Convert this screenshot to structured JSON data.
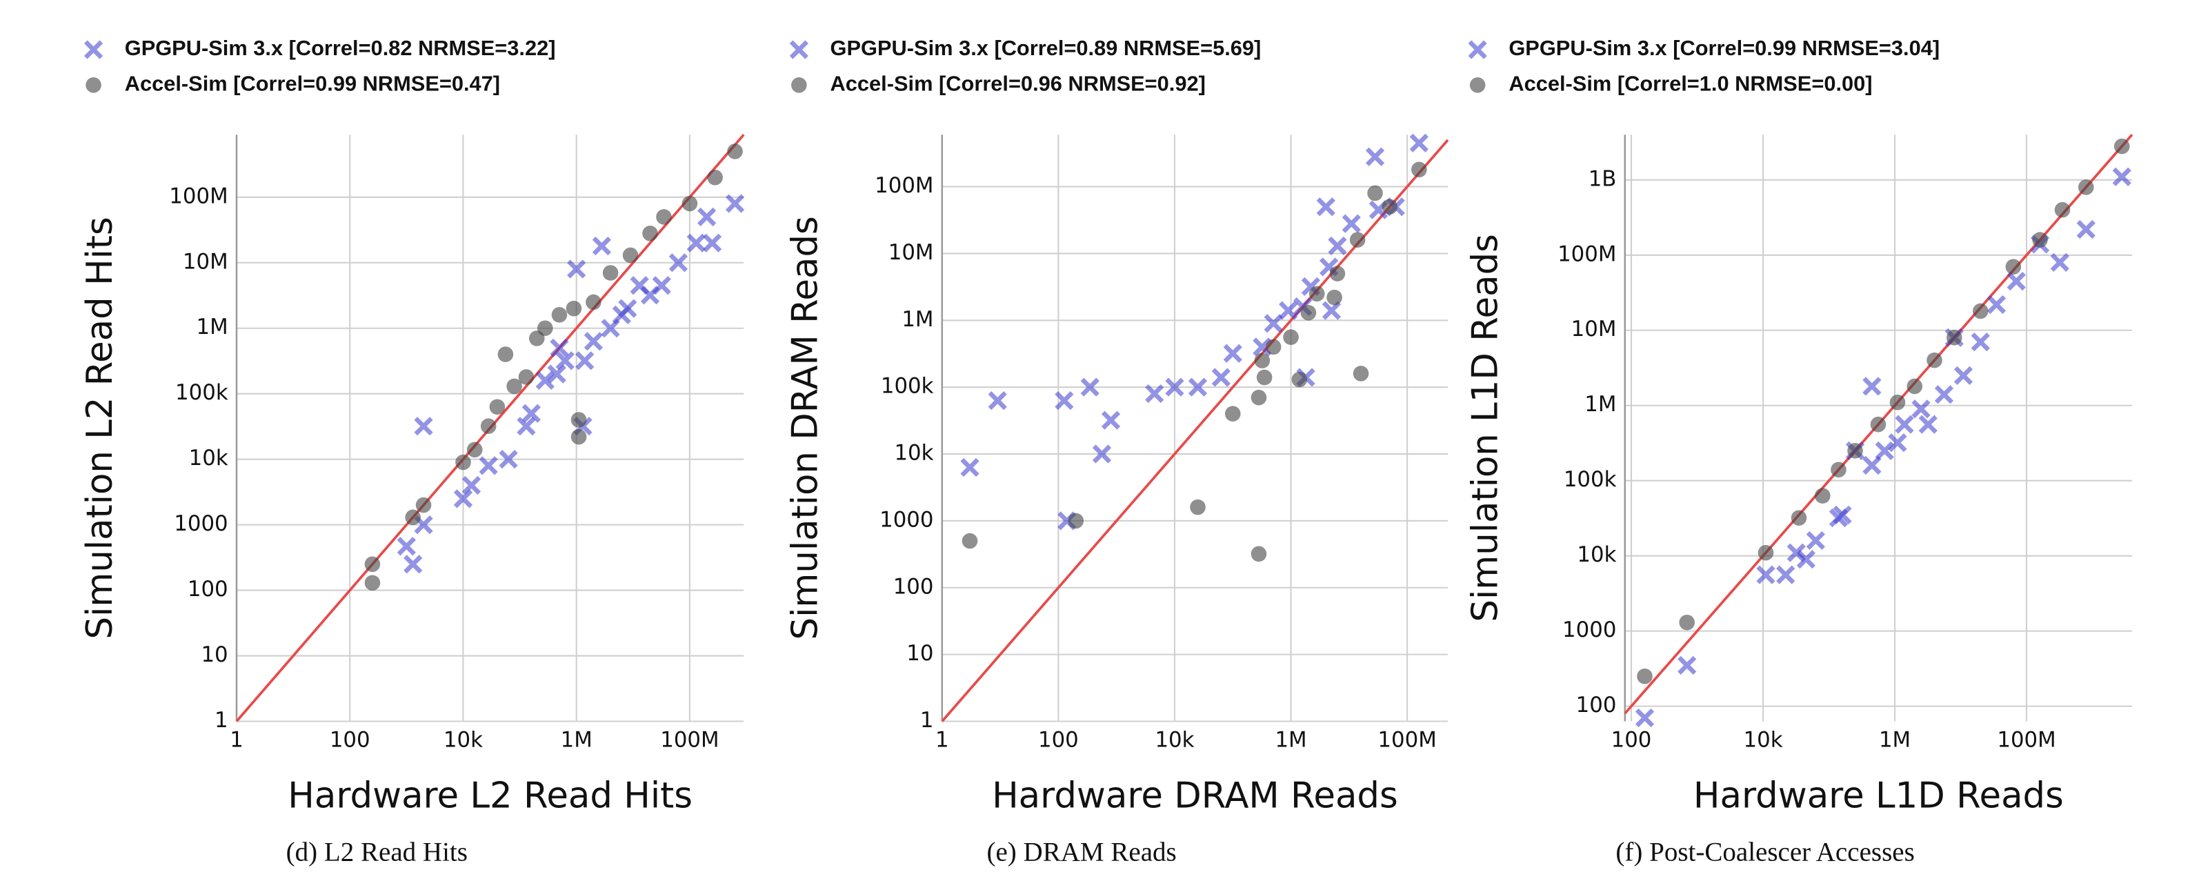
{
  "chart_data": [
    {
      "type": "scatter",
      "caption": "(d) L2 Read Hits",
      "x_label": "Hardware L2 Read Hits",
      "y_label": "Simulation L2 Read Hits",
      "log_x": true,
      "log_y": true,
      "grid": true,
      "diagonal_color": "#e84a4a",
      "xlim": [
        1,
        900000000.0
      ],
      "ylim": [
        1,
        900000000.0
      ],
      "xticks": [
        1,
        100,
        {
          "value": 10000.0,
          "label": "10k"
        },
        {
          "value": 1000000.0,
          "label": "1M"
        },
        {
          "value": 100000000.0,
          "label": "100M"
        }
      ],
      "yticks": [
        1,
        10,
        100,
        1000,
        {
          "value": 10000.0,
          "label": "10k"
        },
        {
          "value": 100000.0,
          "label": "100k"
        },
        {
          "value": 1000000.0,
          "label": "1M"
        },
        {
          "value": 10000000.0,
          "label": "10M"
        },
        {
          "value": 100000000.0,
          "label": "100M"
        }
      ],
      "series": [
        {
          "name": "GPGPU-Sim 3.x [Correl=0.82 NRMSE=3.22]",
          "color": "#3b3bd0",
          "marker": "x",
          "x": [
            2000,
            1000,
            1300,
            2000,
            10000,
            14000,
            28000,
            63000,
            130000,
            160000,
            280000,
            450000,
            630000,
            1000000,
            1300000,
            2000000,
            2800000,
            4000000,
            6300000,
            8000000,
            20000000,
            32000000,
            63000000,
            130000000,
            200000000,
            250000000,
            630000000,
            1400000,
            500000,
            13000000
          ],
          "values": [
            32000,
            470,
            250,
            1000,
            2500,
            4000,
            8000,
            10000,
            32000,
            50000,
            160000,
            200000,
            320000,
            8000000,
            32000,
            630000,
            18000000,
            1000000,
            1600000,
            2000000,
            3200000,
            4500000,
            10000000,
            20000000,
            50000000,
            20000000,
            80000000,
            320000,
            500000,
            4500000
          ]
        },
        {
          "name": "Accel-Sim [Correl=0.99 NRMSE=0.47]",
          "color": "#444444",
          "marker": "o",
          "x": [
            250,
            250,
            1300,
            2000,
            10000,
            16000,
            28000,
            40000,
            56000,
            80000,
            130000,
            200000,
            280000,
            500000,
            900000,
            1100000,
            1100000,
            2000000,
            4000000,
            9000000,
            20000000,
            35000000,
            100000000,
            280000000,
            630000000
          ],
          "values": [
            250,
            130,
            1300,
            2000,
            9000,
            14000,
            32000,
            63000,
            400000,
            130000,
            180000,
            700000,
            1000000,
            1600000,
            2000000,
            40000,
            22000,
            2500000,
            7000000,
            13000000,
            28000000,
            50000000,
            80000000,
            200000000,
            500000000
          ]
        }
      ]
    },
    {
      "type": "scatter",
      "caption": "(e) DRAM Reads",
      "x_label": "Hardware DRAM Reads",
      "y_label": "Simulation DRAM Reads",
      "log_x": true,
      "log_y": true,
      "grid": true,
      "diagonal_color": "#e84a4a",
      "xlim": [
        1,
        500000000.0
      ],
      "ylim": [
        1,
        600000000.0
      ],
      "xticks": [
        1,
        100,
        {
          "value": 10000.0,
          "label": "10k"
        },
        {
          "value": 1000000.0,
          "label": "1M"
        },
        {
          "value": 100000000.0,
          "label": "100M"
        }
      ],
      "yticks": [
        1,
        10,
        100,
        1000,
        {
          "value": 10000.0,
          "label": "10k"
        },
        {
          "value": 100000.0,
          "label": "100k"
        },
        {
          "value": 1000000.0,
          "label": "1M"
        },
        {
          "value": 10000000.0,
          "label": "10M"
        },
        {
          "value": 100000000.0,
          "label": "100M"
        }
      ],
      "series": [
        {
          "name": "GPGPU-Sim 3.x [Correl=0.89 NRMSE=5.69]",
          "color": "#3b3bd0",
          "marker": "x",
          "x": [
            3,
            9,
            126,
            140,
            350,
            560,
            800,
            4500,
            10000,
            25000,
            63000,
            100000,
            320000,
            500000,
            900000,
            1600000,
            1800000,
            4000000,
            4500000,
            6300000,
            11000000,
            28000000,
            32000000,
            63000000,
            160000000,
            5000000,
            2200000
          ],
          "values": [
            6300,
            63000,
            63000,
            1000,
            100000,
            10000,
            32000,
            80000,
            100000,
            100000,
            140000,
            320000,
            400000,
            900000,
            1400000,
            1600000,
            140000,
            50000000,
            6300000,
            13000000,
            28000000,
            280000000,
            45000000,
            50000000,
            450000000,
            1400000,
            3200000
          ]
        },
        {
          "name": "Accel-Sim [Correl=0.96 NRMSE=0.92]",
          "color": "#444444",
          "marker": "o",
          "x": [
            3,
            200,
            25000,
            100000,
            280000,
            280000,
            320000,
            350000,
            500000,
            1000000,
            1400000,
            2800000,
            5600000,
            6300000,
            16000000,
            14000000,
            28000000,
            50000000,
            160000000,
            2000000
          ],
          "values": [
            500,
            1000,
            1600,
            40000,
            320,
            70000,
            250000,
            140000,
            400000,
            560000,
            130000,
            2500000,
            2200000,
            5000000,
            160000,
            16000000,
            80000000,
            50000000,
            180000000,
            1300000
          ]
        }
      ]
    },
    {
      "type": "scatter",
      "caption": "(f) Post-Coalescer Accesses",
      "x_label": "Hardware L1D Reads",
      "y_label": "Simulation L1D Reads",
      "log_x": true,
      "log_y": true,
      "grid": true,
      "diagonal_color": "#e84a4a",
      "xlim": [
        80,
        4000000000.0
      ],
      "ylim": [
        63,
        4000000000.0
      ],
      "xticks": [
        100,
        {
          "value": 10000.0,
          "label": "10k"
        },
        {
          "value": 1000000.0,
          "label": "1M"
        },
        {
          "value": 100000000.0,
          "label": "100M"
        }
      ],
      "yticks": [
        100,
        1000,
        {
          "value": 10000.0,
          "label": "10k"
        },
        {
          "value": 100000.0,
          "label": "100k"
        },
        {
          "value": 1000000.0,
          "label": "1M"
        },
        {
          "value": 10000000.0,
          "label": "10M"
        },
        {
          "value": 100000000.0,
          "label": "100M"
        },
        {
          "value": 1000000000.0,
          "label": "1B"
        }
      ],
      "series": [
        {
          "name": "GPGPU-Sim 3.x [Correl=0.99 NRMSE=3.04]",
          "color": "#3b3bd0",
          "marker": "x",
          "x": [
            160,
            700,
            11000,
            22000,
            32000,
            63000,
            45000,
            160000,
            450000,
            450000,
            1100000,
            1400000,
            2500000,
            3200000,
            5600000,
            11000000,
            20000000,
            70000000,
            160000000,
            320000000,
            800000000,
            2800000000,
            140000,
            250000,
            700000,
            8000000,
            35000000
          ],
          "values": [
            70,
            350,
            5600,
            5600,
            11000,
            16000,
            9000,
            35000,
            160000,
            1800000,
            320000,
            560000,
            900000,
            560000,
            1400000,
            2500000,
            7000000,
            45000000,
            140000000,
            80000000,
            220000000,
            1100000000,
            32000,
            250000,
            250000,
            8000000,
            22000000
          ]
        },
        {
          "name": "Accel-Sim [Correl=1.0 NRMSE=0.00]",
          "color": "#444444",
          "marker": "o",
          "x": [
            160,
            700,
            11000,
            35000,
            80000,
            140000,
            250000,
            560000,
            1100000,
            2000000,
            4000000,
            8000000,
            20000000,
            63000000,
            160000000,
            350000000,
            800000000,
            2800000000
          ],
          "values": [
            250,
            1300,
            11000,
            32000,
            63000,
            140000,
            250000,
            560000,
            1100000,
            1800000,
            4000000,
            8000000,
            18000000,
            70000000,
            160000000,
            400000000,
            800000000,
            2800000000
          ]
        }
      ]
    }
  ]
}
